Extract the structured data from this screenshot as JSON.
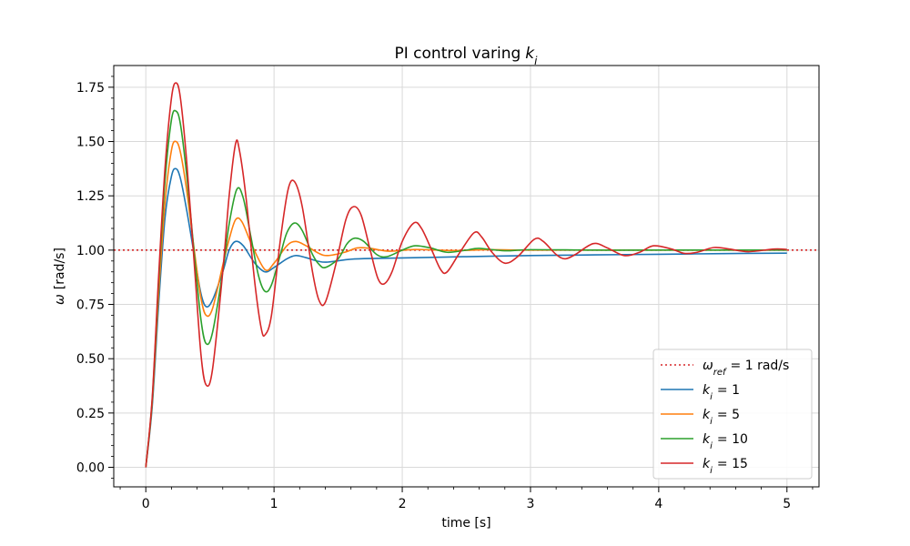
{
  "chart_data": {
    "type": "line",
    "title": "PI control varing",
    "title_symbol": "k",
    "title_subscript": "i",
    "xlabel": "time [s]",
    "ylabel_symbol": "ω",
    "ylabel_unit": "[rad/s]",
    "xlim": [
      -0.25,
      5.25
    ],
    "ylim": [
      -0.09,
      1.85
    ],
    "xticks": [
      0,
      1,
      2,
      3,
      4,
      5
    ],
    "yticks": [
      0.0,
      0.25,
      0.5,
      0.75,
      1.0,
      1.25,
      1.5,
      1.75
    ],
    "xtick_labels": [
      "0",
      "1",
      "2",
      "3",
      "4",
      "5"
    ],
    "ytick_labels": [
      "0.00",
      "0.25",
      "0.50",
      "0.75",
      "1.00",
      "1.25",
      "1.50",
      "1.75"
    ],
    "grid": true,
    "legend_placement": "bottom-right",
    "reference": {
      "value": 1.0,
      "color": "#d62728",
      "style": "dotted",
      "legend_symbol": "ω",
      "legend_subscript": "ref",
      "legend_suffix": "= 1 rad/s"
    },
    "series": [
      {
        "name": "= 1",
        "symbol": "k",
        "subscript": "i",
        "color": "#1f77b4",
        "points": [
          [
            0,
            0
          ],
          [
            0.05,
            0.28
          ],
          [
            0.1,
            0.75
          ],
          [
            0.15,
            1.15
          ],
          [
            0.2,
            1.34
          ],
          [
            0.235,
            1.375
          ],
          [
            0.27,
            1.33
          ],
          [
            0.32,
            1.18
          ],
          [
            0.38,
            0.97
          ],
          [
            0.43,
            0.8
          ],
          [
            0.47,
            0.74
          ],
          [
            0.52,
            0.77
          ],
          [
            0.6,
            0.9
          ],
          [
            0.65,
            1.0
          ],
          [
            0.7,
            1.04
          ],
          [
            0.76,
            1.02
          ],
          [
            0.85,
            0.94
          ],
          [
            0.93,
            0.9
          ],
          [
            1.0,
            0.92
          ],
          [
            1.1,
            0.96
          ],
          [
            1.17,
            0.975
          ],
          [
            1.25,
            0.965
          ],
          [
            1.35,
            0.948
          ],
          [
            1.42,
            0.945
          ],
          [
            1.6,
            0.958
          ],
          [
            1.8,
            0.962
          ],
          [
            2.0,
            0.964
          ],
          [
            2.5,
            0.97
          ],
          [
            3.0,
            0.975
          ],
          [
            3.5,
            0.978
          ],
          [
            4.0,
            0.981
          ],
          [
            4.5,
            0.984
          ],
          [
            5.0,
            0.986
          ]
        ]
      },
      {
        "name": "= 5",
        "symbol": "k",
        "subscript": "i",
        "color": "#ff7f0e",
        "points": [
          [
            0,
            0
          ],
          [
            0.05,
            0.3
          ],
          [
            0.1,
            0.8
          ],
          [
            0.15,
            1.22
          ],
          [
            0.2,
            1.46
          ],
          [
            0.235,
            1.5
          ],
          [
            0.27,
            1.45
          ],
          [
            0.32,
            1.27
          ],
          [
            0.38,
            0.99
          ],
          [
            0.43,
            0.78
          ],
          [
            0.47,
            0.7
          ],
          [
            0.52,
            0.73
          ],
          [
            0.6,
            0.93
          ],
          [
            0.65,
            1.05
          ],
          [
            0.7,
            1.14
          ],
          [
            0.75,
            1.13
          ],
          [
            0.83,
            1.02
          ],
          [
            0.93,
            0.91
          ],
          [
            1.0,
            0.94
          ],
          [
            1.1,
            1.02
          ],
          [
            1.17,
            1.04
          ],
          [
            1.25,
            1.02
          ],
          [
            1.35,
            0.985
          ],
          [
            1.42,
            0.975
          ],
          [
            1.55,
            0.99
          ],
          [
            1.65,
            1.01
          ],
          [
            1.75,
            1.008
          ],
          [
            1.9,
            0.995
          ],
          [
            2.1,
            1.003
          ],
          [
            2.4,
            0.998
          ],
          [
            2.7,
            1.002
          ],
          [
            3.0,
            1.0
          ],
          [
            4.0,
            1.0
          ],
          [
            5.0,
            1.0
          ]
        ]
      },
      {
        "name": "= 10",
        "symbol": "k",
        "subscript": "i",
        "color": "#2ca02c",
        "points": [
          [
            0,
            0
          ],
          [
            0.05,
            0.31
          ],
          [
            0.1,
            0.85
          ],
          [
            0.15,
            1.32
          ],
          [
            0.2,
            1.6
          ],
          [
            0.235,
            1.64
          ],
          [
            0.27,
            1.58
          ],
          [
            0.32,
            1.34
          ],
          [
            0.38,
            0.97
          ],
          [
            0.43,
            0.68
          ],
          [
            0.47,
            0.57
          ],
          [
            0.52,
            0.62
          ],
          [
            0.6,
            0.9
          ],
          [
            0.65,
            1.12
          ],
          [
            0.71,
            1.28
          ],
          [
            0.76,
            1.24
          ],
          [
            0.82,
            1.06
          ],
          [
            0.88,
            0.88
          ],
          [
            0.93,
            0.81
          ],
          [
            0.98,
            0.84
          ],
          [
            1.05,
            0.98
          ],
          [
            1.1,
            1.08
          ],
          [
            1.16,
            1.125
          ],
          [
            1.22,
            1.09
          ],
          [
            1.3,
            0.98
          ],
          [
            1.35,
            0.935
          ],
          [
            1.4,
            0.92
          ],
          [
            1.5,
            0.96
          ],
          [
            1.57,
            1.03
          ],
          [
            1.63,
            1.055
          ],
          [
            1.7,
            1.04
          ],
          [
            1.8,
            0.98
          ],
          [
            1.88,
            0.97
          ],
          [
            2.0,
            1.0
          ],
          [
            2.1,
            1.02
          ],
          [
            2.22,
            1.01
          ],
          [
            2.35,
            0.99
          ],
          [
            2.5,
            1.0
          ],
          [
            2.6,
            1.008
          ],
          [
            2.8,
            0.997
          ],
          [
            3.0,
            1.002
          ],
          [
            3.5,
            1.0
          ],
          [
            4.0,
            1.0
          ],
          [
            5.0,
            1.0
          ]
        ]
      },
      {
        "name": "= 15",
        "symbol": "k",
        "subscript": "i",
        "color": "#d62728",
        "points": [
          [
            0,
            0
          ],
          [
            0.05,
            0.32
          ],
          [
            0.1,
            0.88
          ],
          [
            0.15,
            1.38
          ],
          [
            0.2,
            1.7
          ],
          [
            0.235,
            1.77
          ],
          [
            0.27,
            1.7
          ],
          [
            0.32,
            1.4
          ],
          [
            0.38,
            0.92
          ],
          [
            0.43,
            0.52
          ],
          [
            0.47,
            0.38
          ],
          [
            0.52,
            0.45
          ],
          [
            0.6,
            0.9
          ],
          [
            0.65,
            1.25
          ],
          [
            0.7,
            1.49
          ],
          [
            0.73,
            1.46
          ],
          [
            0.78,
            1.25
          ],
          [
            0.85,
            0.85
          ],
          [
            0.9,
            0.64
          ],
          [
            0.93,
            0.61
          ],
          [
            0.98,
            0.7
          ],
          [
            1.05,
            1.05
          ],
          [
            1.11,
            1.28
          ],
          [
            1.16,
            1.315
          ],
          [
            1.22,
            1.2
          ],
          [
            1.3,
            0.9
          ],
          [
            1.35,
            0.77
          ],
          [
            1.4,
            0.76
          ],
          [
            1.48,
            0.93
          ],
          [
            1.56,
            1.14
          ],
          [
            1.62,
            1.2
          ],
          [
            1.68,
            1.16
          ],
          [
            1.75,
            1.0
          ],
          [
            1.81,
            0.87
          ],
          [
            1.86,
            0.845
          ],
          [
            1.92,
            0.9
          ],
          [
            2.0,
            1.04
          ],
          [
            2.09,
            1.125
          ],
          [
            2.15,
            1.1
          ],
          [
            2.23,
            1.0
          ],
          [
            2.3,
            0.91
          ],
          [
            2.35,
            0.9
          ],
          [
            2.45,
            0.99
          ],
          [
            2.56,
            1.08
          ],
          [
            2.62,
            1.06
          ],
          [
            2.7,
            0.99
          ],
          [
            2.8,
            0.94
          ],
          [
            2.9,
            0.97
          ],
          [
            3.03,
            1.05
          ],
          [
            3.1,
            1.04
          ],
          [
            3.2,
            0.98
          ],
          [
            3.27,
            0.96
          ],
          [
            3.35,
            0.98
          ],
          [
            3.49,
            1.03
          ],
          [
            3.6,
            1.01
          ],
          [
            3.73,
            0.975
          ],
          [
            3.85,
            0.99
          ],
          [
            3.96,
            1.02
          ],
          [
            4.1,
            1.005
          ],
          [
            4.2,
            0.985
          ],
          [
            4.3,
            0.99
          ],
          [
            4.43,
            1.012
          ],
          [
            4.55,
            1.005
          ],
          [
            4.7,
            0.993
          ],
          [
            4.9,
            1.005
          ],
          [
            5.0,
            1.003
          ]
        ]
      }
    ]
  }
}
